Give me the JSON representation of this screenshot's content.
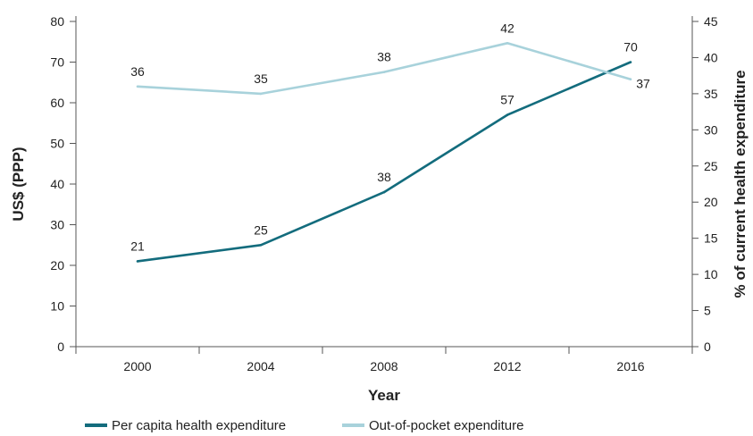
{
  "chart_data": {
    "type": "line",
    "categories": [
      "2000",
      "2004",
      "2008",
      "2012",
      "2016"
    ],
    "xlabel": "Year",
    "ylabel_left": "US$ (PPP)",
    "ylabel_right": "% of current health expenditure",
    "ylim_left": [
      0,
      80
    ],
    "yticks_left": [
      0,
      10,
      20,
      30,
      40,
      50,
      60,
      70,
      80
    ],
    "ylim_right": [
      0,
      45
    ],
    "yticks_right": [
      0,
      5,
      10,
      15,
      20,
      25,
      30,
      35,
      40,
      45
    ],
    "grid": false,
    "legend_position": "bottom",
    "series": [
      {
        "name": "Per capita health expenditure",
        "axis": "left",
        "color": "#136c7d",
        "values": [
          21,
          25,
          38,
          57,
          70
        ],
        "labels": [
          "21",
          "25",
          "38",
          "57",
          "70"
        ]
      },
      {
        "name": "Out-of-pocket expenditure",
        "axis": "right",
        "color": "#a8d2db",
        "values": [
          36,
          35,
          38,
          42,
          37
        ],
        "labels": [
          "36",
          "35",
          "38",
          "42",
          "37"
        ]
      }
    ]
  }
}
